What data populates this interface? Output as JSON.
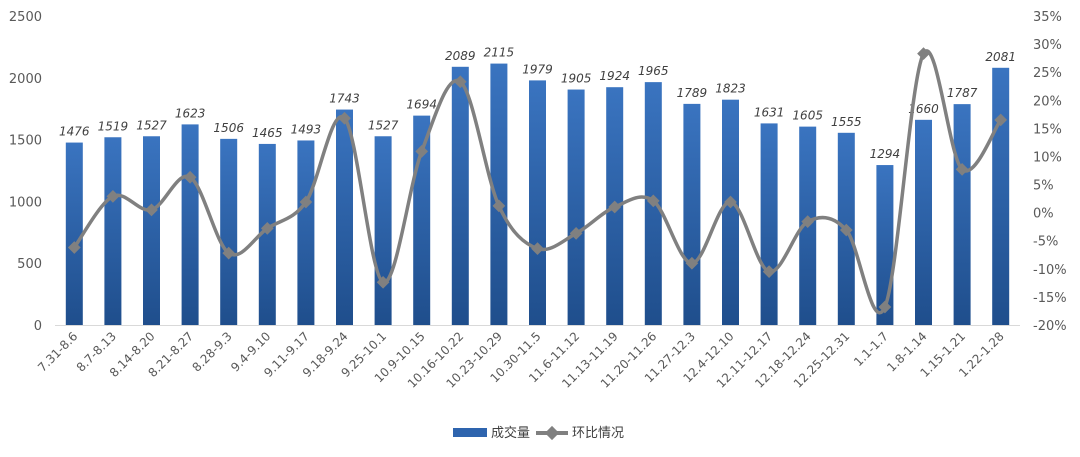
{
  "chart_data": {
    "type": "bar",
    "categories": [
      "7.31-8.6",
      "8.7-8.13",
      "8.14-8.20",
      "8.21-8.27",
      "8.28-9.3",
      "9.4-9.10",
      "9.11-9.17",
      "9.18-9.24",
      "9.25-10.1",
      "10.9-10.15",
      "10.16-10.22",
      "10.23-10.29",
      "10.30-11.5",
      "11.6-11.12",
      "11.13-11.19",
      "11.20-11.26",
      "11.27-12.3",
      "12.4-12.10",
      "12.11-12.17",
      "12.18-12.24",
      "12.25-12.31",
      "1.1-1.7",
      "1.8-1.14",
      "1.15-1.21",
      "1.22-1.28"
    ],
    "series": [
      {
        "name": "成交量",
        "type": "bar",
        "axis": "left",
        "color": "#2E64AE",
        "values": [
          1476,
          1519,
          1527,
          1623,
          1506,
          1465,
          1493,
          1743,
          1527,
          1694,
          2089,
          2115,
          1979,
          1905,
          1924,
          1965,
          1789,
          1823,
          1631,
          1605,
          1555,
          1294,
          1660,
          1787,
          2081
        ],
        "data_labels": [
          "1476",
          "1519",
          "1527",
          "1623",
          "1506",
          "1465",
          "1493",
          "1743",
          "1527",
          "1694",
          "2089",
          "2115",
          "1979",
          "1905",
          "1924",
          "1965",
          "1789",
          "1823",
          "1631",
          "1605",
          "1555",
          "1294",
          "1660",
          "1787",
          "2081"
        ]
      },
      {
        "name": "环比情况",
        "type": "line",
        "axis": "right",
        "color": "#808080",
        "values": [
          -6.2,
          2.9,
          0.5,
          6.3,
          -7.2,
          -2.8,
          1.9,
          16.8,
          -12.4,
          10.9,
          23.3,
          1.2,
          -6.4,
          -3.7,
          1.0,
          2.1,
          -9.0,
          1.9,
          -10.5,
          -1.6,
          -3.1,
          -16.8,
          28.3,
          7.7,
          16.5
        ]
      }
    ],
    "y_left": {
      "min": 0,
      "max": 2500,
      "ticks": [
        "0",
        "500",
        "1000",
        "1500",
        "2000",
        "2500"
      ]
    },
    "y_right": {
      "min": -20,
      "max": 35,
      "ticks": [
        "-20%",
        "-15%",
        "-10%",
        "-5%",
        "0%",
        "5%",
        "10%",
        "15%",
        "20%",
        "25%",
        "30%",
        "35%"
      ]
    },
    "grid": false,
    "legend": {
      "placement": "bottom-center",
      "items": [
        "成交量",
        "环比情况"
      ]
    },
    "title": "",
    "xlabel": "",
    "ylabel": ""
  }
}
